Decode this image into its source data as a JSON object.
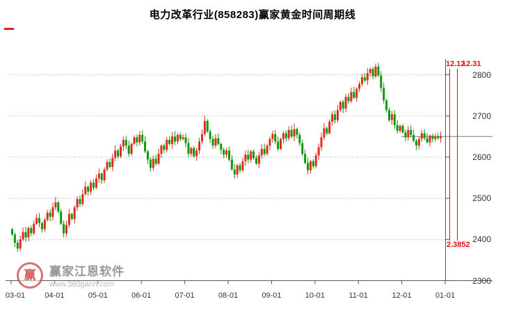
{
  "title": "电力改革行业(858283)赢家黄金时间周期线",
  "watermark": {
    "brand": "赢家江恩软件",
    "url": "www.360gann.com",
    "logo_glyph": "赢"
  },
  "markers": {
    "top_labels": [
      "12.12",
      "12.31"
    ],
    "bottom_label": "2.3852",
    "color": "#e01010"
  },
  "price_line": {
    "value": 2650,
    "color": "#7a7a7a"
  },
  "chart_data": {
    "type": "candlestick",
    "title": "电力改革行业(858283)赢家黄金时间周期线",
    "x_ticks": [
      "03-01",
      "04-01",
      "05-01",
      "06-01",
      "07-01",
      "08-01",
      "09-01",
      "10-01",
      "11-01",
      "12-01",
      "01-01"
    ],
    "y_ticks": [
      2300,
      2400,
      2500,
      2600,
      2700,
      2800
    ],
    "ylim": [
      2297,
      2838
    ],
    "grid": "dotted-horizontal",
    "legend": "none",
    "up_color": "#dd2d1e",
    "down_color": "#0a9a0a",
    "first_open": 2425,
    "closes": [
      2412,
      2392,
      2378,
      2400,
      2418,
      2405,
      2428,
      2415,
      2438,
      2452,
      2440,
      2425,
      2448,
      2465,
      2455,
      2478,
      2490,
      2468,
      2438,
      2415,
      2435,
      2462,
      2450,
      2478,
      2498,
      2486,
      2510,
      2528,
      2516,
      2538,
      2526,
      2548,
      2560,
      2544,
      2570,
      2588,
      2576,
      2598,
      2616,
      2602,
      2626,
      2642,
      2628,
      2608,
      2632,
      2648,
      2636,
      2654,
      2638,
      2614,
      2594,
      2574,
      2596,
      2584,
      2608,
      2628,
      2618,
      2642,
      2632,
      2650,
      2638,
      2654,
      2644,
      2648,
      2634,
      2608,
      2622,
      2602,
      2616,
      2638,
      2656,
      2688,
      2662,
      2644,
      2628,
      2646,
      2632,
      2618,
      2606,
      2616,
      2594,
      2570,
      2558,
      2580,
      2568,
      2590,
      2606,
      2594,
      2614,
      2598,
      2584,
      2604,
      2620,
      2608,
      2628,
      2644,
      2656,
      2638,
      2620,
      2644,
      2658,
      2646,
      2666,
      2650,
      2668,
      2654,
      2634,
      2608,
      2586,
      2568,
      2590,
      2578,
      2604,
      2624,
      2648,
      2670,
      2658,
      2686,
      2704,
      2690,
      2714,
      2734,
      2718,
      2746,
      2736,
      2758,
      2744,
      2766,
      2778,
      2794,
      2786,
      2804,
      2814,
      2796,
      2820,
      2798,
      2768,
      2738,
      2714,
      2690,
      2704,
      2678,
      2664,
      2676,
      2660,
      2648,
      2666,
      2654,
      2640,
      2628,
      2644,
      2658,
      2646,
      2636,
      2652,
      2644,
      2650,
      2646,
      2651
    ]
  }
}
